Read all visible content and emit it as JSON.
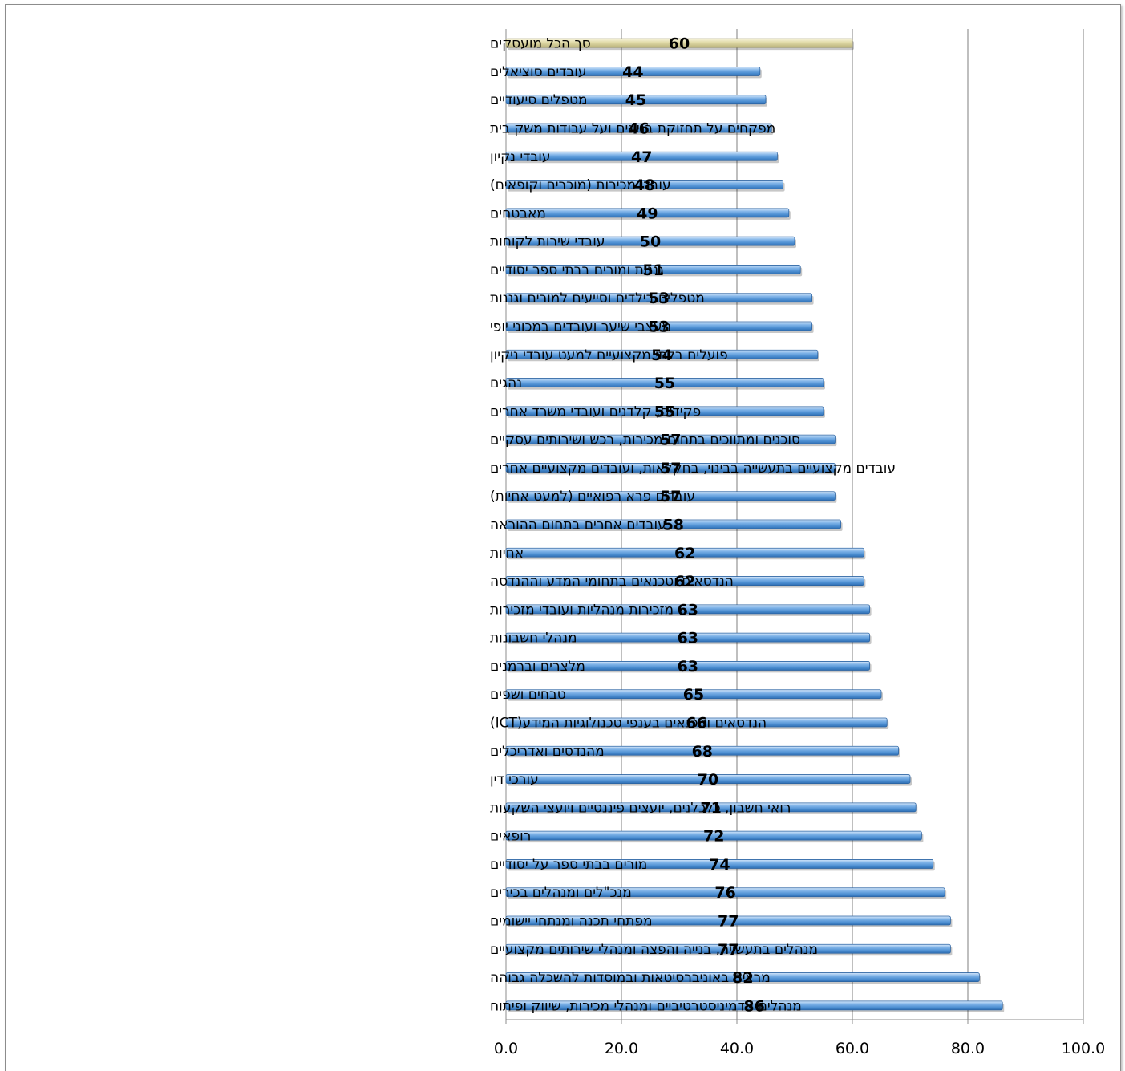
{
  "chart_data": {
    "type": "bar",
    "orientation": "horizontal",
    "categories": [
      "סך הכל מועסקים",
      "עובדים סוציאלים",
      "מטפלים סיעודיים",
      "מפקחים על תחזוקת בניינים ועל עבודות משק בית",
      "עובדי נקיון",
      "עובדי מכירות (מוכרים וקופאים)",
      "מאבטחים",
      "עובדי שירות לקוחות",
      "גננות ומורים בבתי ספר יסודיים",
      "מטפלים בילדים וסייעים למורים וגננות",
      "מעצבי שיער ועובדים במכוני יופי",
      "פועלים בלתי מקצועיים למעט עובדי ניקיון",
      "נהגים",
      "פקידים, קלדנים ועובדי משרד אחרים",
      "סוכנים ומתווכים בתחום מכירות, רכש ושירותים עסקיים",
      "עובדים מקצועיים בתעשייה בבינוי, בחקלאות, ועובדים מקצועיים אחרים",
      "עובדים פרא רפואיים (למעט אחיות)",
      "עובדים אחרים בתחום ההוראה",
      "אחיות",
      "הנדסאים וטכנאים בתחומי המדע וההנדסה",
      "מזכירות מנהליות ועובדי מזכירות",
      "מנהלי חשבונות",
      "מלצרים וברמנים",
      "טבחים ושפים",
      "הנדסאים וטכנאים בענפי טכנולוגיות המידע(ICT)",
      "מהנדסים ואדריכלים",
      "עורכי דין",
      "רואי חשבון, כלכלנים, יועצים פיננסיים ויועצי השקעות",
      "רופאים",
      "מורים בבתי ספר על יסודיים",
      "מנכ\"לים ומנהלים בכירים",
      "מפתחי תכנה ומנתחי יישומים",
      "מנהלים בתעשייה, בנייה והפצה ומנהלי שירותים מקצועיים",
      "מרצים באוניברסיטאות ובמוסדות להשכלה גבוהה",
      "מנהלים אדמיניסטרטיביים ומנהלי מכירות, שיווק ופיתוח"
    ],
    "values": [
      60,
      44,
      45,
      46,
      47,
      48,
      49,
      50,
      51,
      53,
      53,
      54,
      55,
      55,
      57,
      57,
      57,
      58,
      62,
      62,
      63,
      63,
      63,
      65,
      66,
      68,
      70,
      71,
      72,
      74,
      76,
      77,
      77,
      82,
      86
    ],
    "data_labels": [
      "60",
      "44",
      "45",
      "46",
      "47",
      "48",
      "49",
      "50",
      "51",
      "53",
      "53",
      "54",
      "55",
      "55",
      "57",
      "57",
      "57",
      "58",
      "62",
      "62",
      "63",
      "63",
      "63",
      "65",
      "66",
      "68",
      "70",
      "71",
      "72",
      "74",
      "76",
      "77",
      "77",
      "82",
      "86"
    ],
    "highlight_index": 0,
    "xlim": [
      0,
      100
    ],
    "x_ticks": [
      0,
      20,
      40,
      60,
      80,
      100
    ],
    "x_tick_labels": [
      "0.0",
      "20.0",
      "40.0",
      "60.0",
      "80.0",
      "100.0"
    ],
    "grid": "vertical",
    "colors": {
      "bar": "#5b9bd5",
      "bar_highlight": "#ddd8a8",
      "grid": "#7f7f7f"
    }
  }
}
